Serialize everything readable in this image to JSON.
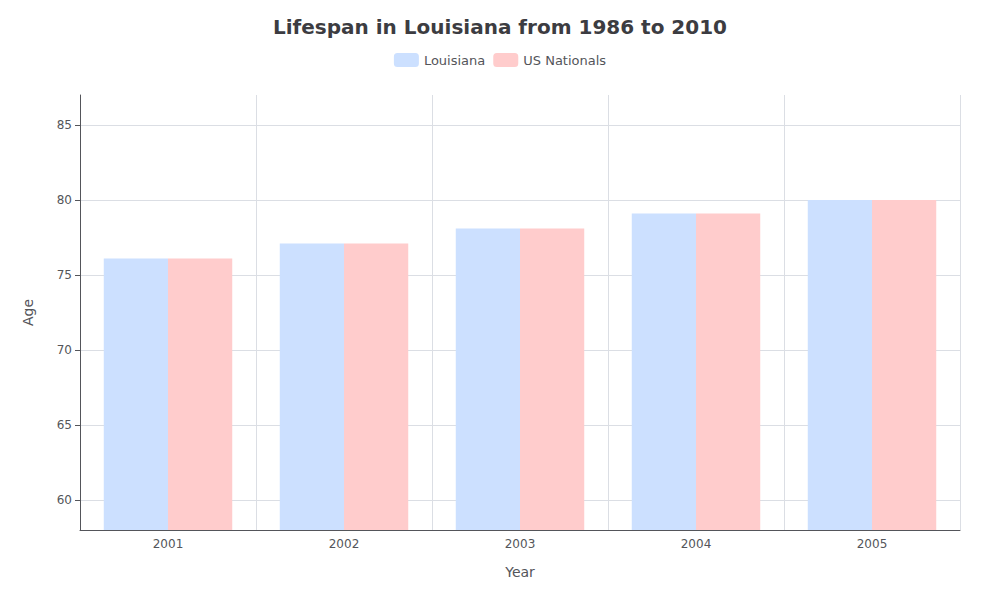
{
  "chart_data": {
    "type": "bar",
    "title": "Lifespan in Louisiana from 1986 to 2010",
    "x_label": "Year",
    "y_label": "Age",
    "categories": [
      "2001",
      "2002",
      "2003",
      "2004",
      "2005"
    ],
    "series": [
      {
        "name": "Louisiana",
        "color": "#cce0ff",
        "values": [
          76.1,
          77.1,
          78.1,
          79.1,
          80.0
        ]
      },
      {
        "name": "US Nationals",
        "color": "#ffcccc",
        "values": [
          76.1,
          77.1,
          78.1,
          79.1,
          80.0
        ]
      }
    ],
    "ylim": [
      58,
      87
    ],
    "yticks": [
      60,
      65,
      70,
      75,
      80,
      85
    ],
    "grid": true,
    "legend": "top"
  }
}
